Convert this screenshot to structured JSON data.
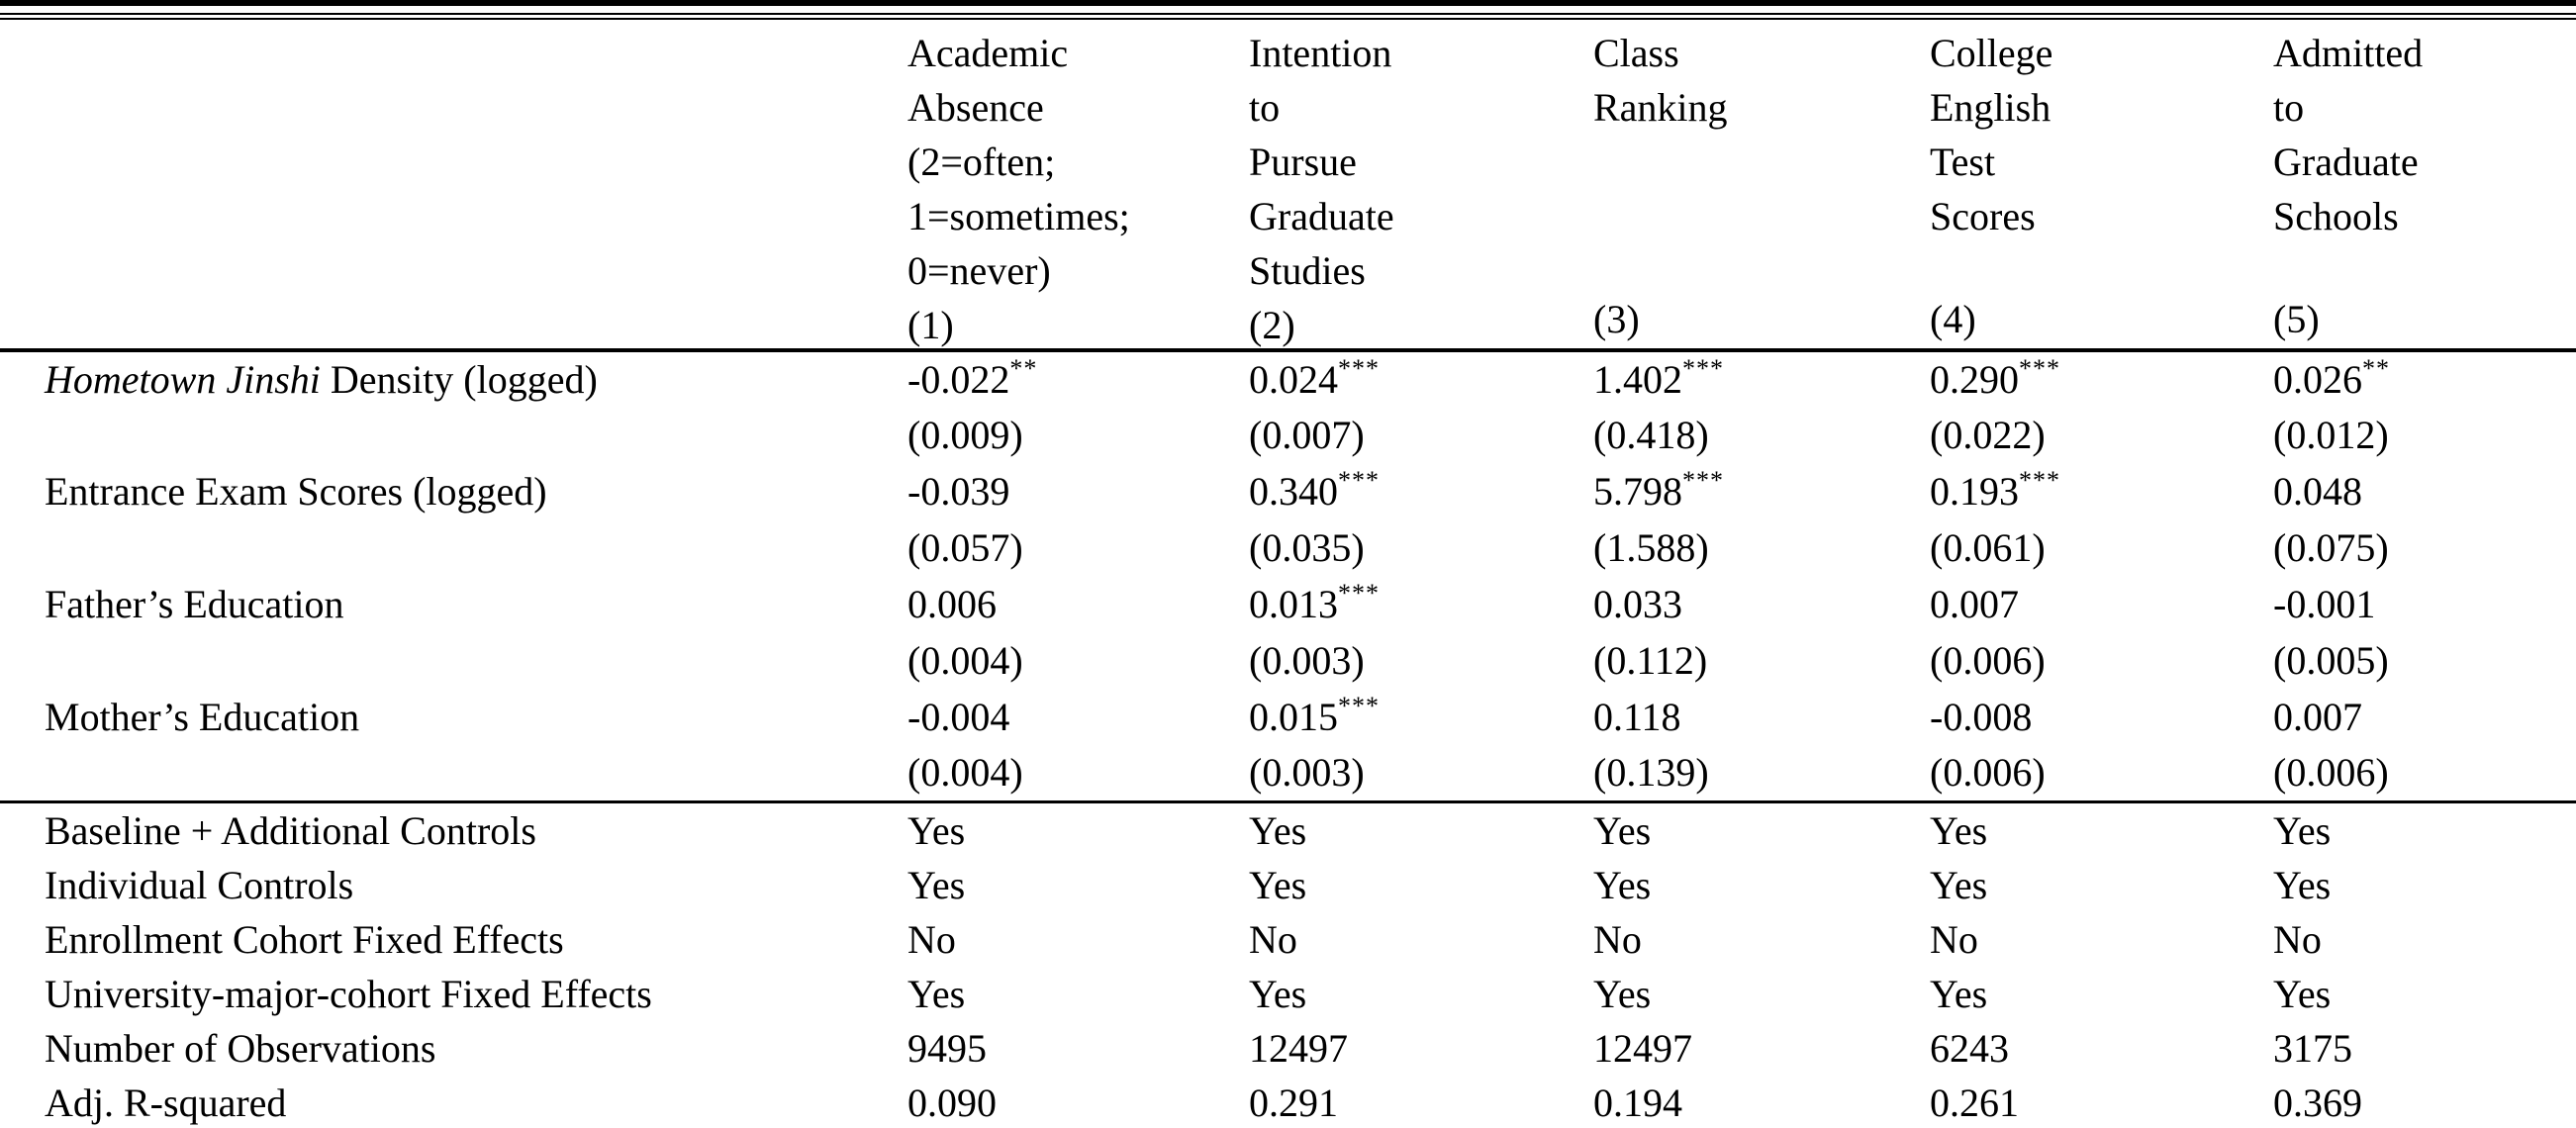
{
  "table": {
    "header": {
      "row_label_column": "",
      "columns": [
        {
          "title": "Academic\nAbsence\n(2=often;\n1=sometimes;\n0=never)",
          "num": "(1)"
        },
        {
          "title": "Intention\nto\nPursue\nGraduate\nStudies",
          "num": "(2)"
        },
        {
          "title": "Class\nRanking",
          "num": "(3)"
        },
        {
          "title": "College\nEnglish\nTest\nScores",
          "num": "(4)"
        },
        {
          "title": "Admitted\nto\nGraduate\nSchools",
          "num": "(5)"
        }
      ]
    },
    "coefficient_rows": [
      {
        "label_parts": [
          {
            "text": "Hometown Jinshi",
            "italic": true
          },
          {
            "text": " Density (logged)",
            "italic": false
          }
        ],
        "coefs": [
          {
            "v": "-0.022",
            "stars": "**"
          },
          {
            "v": "0.024",
            "stars": "***"
          },
          {
            "v": "1.402",
            "stars": "***"
          },
          {
            "v": "0.290",
            "stars": "***"
          },
          {
            "v": "0.026",
            "stars": "**"
          }
        ],
        "ses": [
          "(0.009)",
          "(0.007)",
          "(0.418)",
          "(0.022)",
          "(0.012)"
        ]
      },
      {
        "label_parts": [
          {
            "text": "Entrance Exam Scores (logged)",
            "italic": false
          }
        ],
        "coefs": [
          {
            "v": "-0.039",
            "stars": ""
          },
          {
            "v": "0.340",
            "stars": "***"
          },
          {
            "v": "5.798",
            "stars": "***"
          },
          {
            "v": "0.193",
            "stars": "***"
          },
          {
            "v": "0.048",
            "stars": ""
          }
        ],
        "ses": [
          "(0.057)",
          "(0.035)",
          "(1.588)",
          "(0.061)",
          "(0.075)"
        ]
      },
      {
        "label_parts": [
          {
            "text": "Father’s Education",
            "italic": false
          }
        ],
        "coefs": [
          {
            "v": "0.006",
            "stars": ""
          },
          {
            "v": "0.013",
            "stars": "***"
          },
          {
            "v": "0.033",
            "stars": ""
          },
          {
            "v": "0.007",
            "stars": ""
          },
          {
            "v": "-0.001",
            "stars": ""
          }
        ],
        "ses": [
          "(0.004)",
          "(0.003)",
          "(0.112)",
          "(0.006)",
          "(0.005)"
        ]
      },
      {
        "label_parts": [
          {
            "text": "Mother’s Education",
            "italic": false
          }
        ],
        "coefs": [
          {
            "v": "-0.004",
            "stars": ""
          },
          {
            "v": "0.015",
            "stars": "***"
          },
          {
            "v": "0.118",
            "stars": ""
          },
          {
            "v": "-0.008",
            "stars": ""
          },
          {
            "v": "0.007",
            "stars": ""
          }
        ],
        "ses": [
          "(0.004)",
          "(0.003)",
          "(0.139)",
          "(0.006)",
          "(0.006)"
        ]
      }
    ],
    "summary_rows": [
      {
        "label": "Baseline + Additional Controls",
        "values": [
          "Yes",
          "Yes",
          "Yes",
          "Yes",
          "Yes"
        ]
      },
      {
        "label": "Individual Controls",
        "values": [
          "Yes",
          "Yes",
          "Yes",
          "Yes",
          "Yes"
        ]
      },
      {
        "label": "Enrollment Cohort Fixed Effects",
        "values": [
          "No",
          "No",
          "No",
          "No",
          "No"
        ]
      },
      {
        "label": "University-major-cohort Fixed Effects",
        "values": [
          "Yes",
          "Yes",
          "Yes",
          "Yes",
          "Yes"
        ]
      },
      {
        "label": "Number of Observations",
        "values": [
          "9495",
          "12497",
          "12497",
          "6243",
          "3175"
        ]
      },
      {
        "label": "Adj. R-squared",
        "values": [
          "0.090",
          "0.291",
          "0.194",
          "0.261",
          "0.369"
        ]
      }
    ]
  }
}
